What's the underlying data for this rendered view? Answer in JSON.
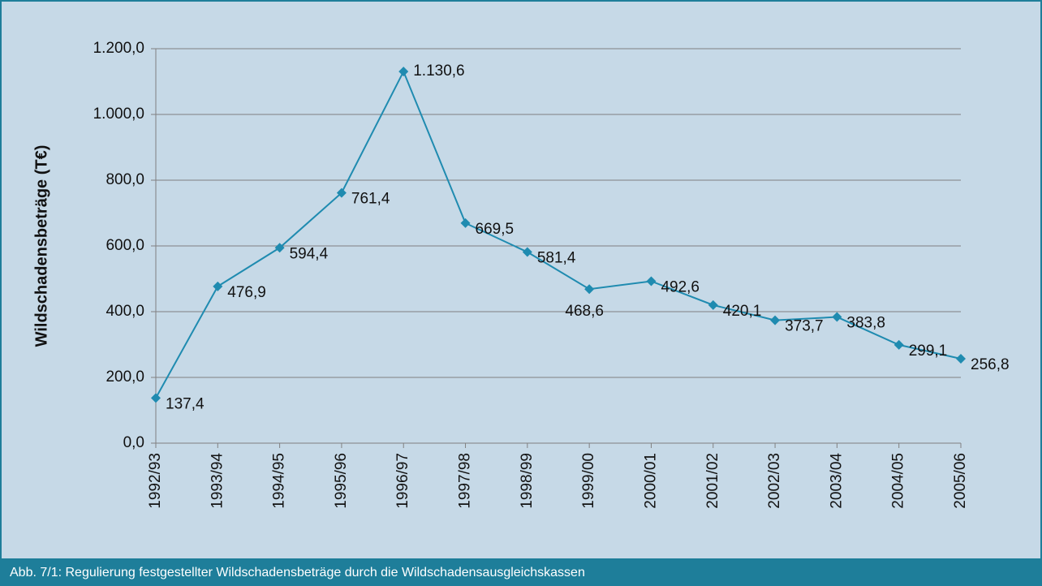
{
  "chart_data": {
    "type": "line",
    "y_label": "Wildschadensbeträge (T€)",
    "caption": "Abb. 7/1: Regulierung festgestellter Wildschadensbeträge durch die Wildschadensausgleichskassen",
    "categories": [
      "1992/93",
      "1993/94",
      "1994/95",
      "1995/96",
      "1996/97",
      "1997/98",
      "1998/99",
      "1999/00",
      "2000/01",
      "2001/02",
      "2002/03",
      "2003/04",
      "2004/05",
      "2005/06"
    ],
    "values": [
      137.4,
      476.9,
      594.4,
      761.4,
      1130.6,
      669.5,
      581.4,
      468.6,
      492.6,
      420.1,
      373.7,
      383.8,
      299.1,
      256.8
    ],
    "value_labels": [
      "137,4",
      "476,9",
      "594,4",
      "761,4",
      "1.130,6",
      "669,5",
      "581,4",
      "468,6",
      "492,6",
      "420,1",
      "373,7",
      "383,8",
      "299,1",
      "256,8"
    ],
    "color": "#1f8bb0",
    "ylim": [
      0,
      1200
    ],
    "yticks": [
      {
        "value": 0,
        "label": "0,0"
      },
      {
        "value": 200,
        "label": "200,0"
      },
      {
        "value": 400,
        "label": "400,0"
      },
      {
        "value": 600,
        "label": "600,0"
      },
      {
        "value": 800,
        "label": "800,0"
      },
      {
        "value": 1000,
        "label": "1.000,0"
      },
      {
        "value": 1200,
        "label": "1.200,0"
      }
    ],
    "grid": true
  }
}
